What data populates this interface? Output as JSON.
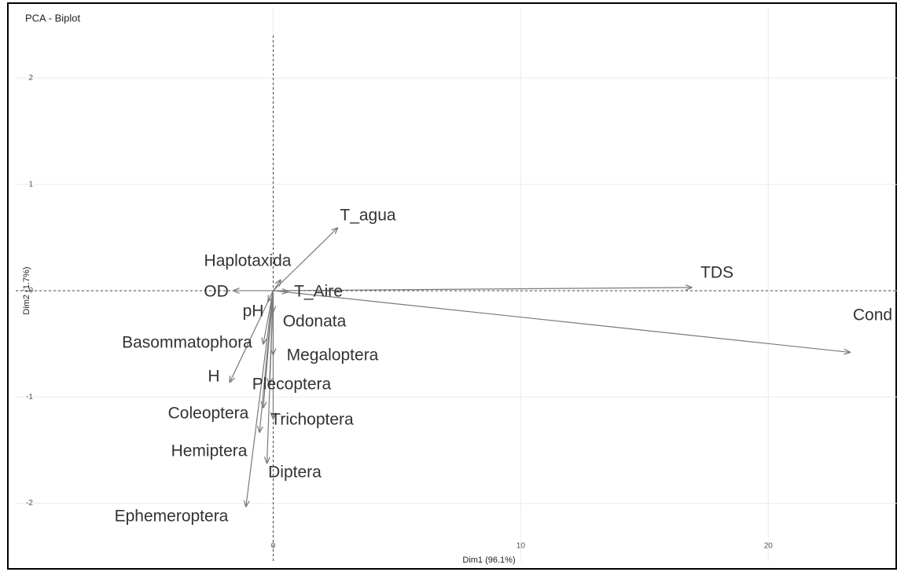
{
  "chart_data": {
    "type": "biplot",
    "title": "PCA - Biplot",
    "xlabel": "Dim1 (96.1%)",
    "ylabel": "Dim2 (1.7%)",
    "labels": [
      "T_agua",
      "TDS",
      "Cond",
      "OD",
      "Haplotaxida",
      "T_Aire",
      "pH",
      "Odonata",
      "Basommatophora",
      "H",
      "Megaloptera",
      "Plecoptera",
      "Coleoptera",
      "Trichoptera",
      "Hemiptera",
      "Diptera",
      "Ephemeroptera"
    ],
    "x": [
      2.6,
      16.9,
      23.3,
      -1.6,
      0.3,
      0.6,
      -0.2,
      0.0,
      -0.4,
      -1.75,
      0.0,
      -0.15,
      -0.4,
      0.0,
      -0.55,
      -0.25,
      -1.1
    ],
    "y": [
      0.59,
      0.03,
      -0.58,
      0.0,
      0.1,
      -0.01,
      -0.1,
      -0.2,
      -0.5,
      -0.86,
      -0.6,
      -0.88,
      -1.1,
      -1.2,
      -1.33,
      -1.62,
      -2.03
    ],
    "color": "#7a7a7a",
    "xlim": [
      -10.4,
      25.2
    ],
    "ylim": [
      -2.55,
      2.66
    ],
    "xticks": [
      0,
      10,
      20
    ],
    "yticks": [
      -2,
      -1,
      0,
      1,
      2
    ],
    "grid": true
  }
}
